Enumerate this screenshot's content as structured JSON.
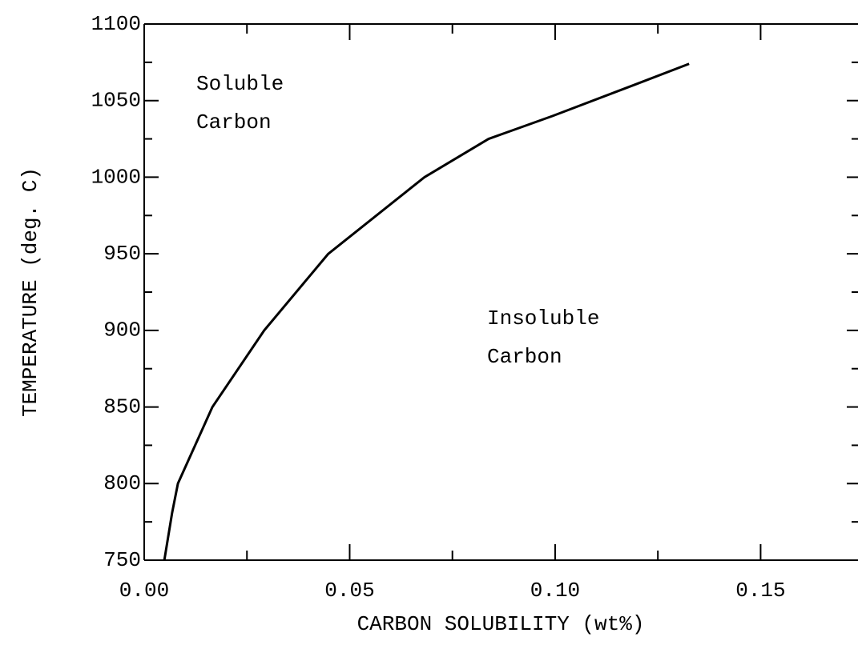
{
  "chart_data": {
    "type": "line",
    "xlabel": "CARBON SOLUBILITY (wt%)",
    "ylabel": "TEMPERATURE (deg. C)",
    "annotations": [
      [
        "Soluble",
        "Carbon"
      ],
      [
        "Insoluble",
        "Carbon"
      ]
    ],
    "x": [
      0.0049,
      0.0068,
      0.0082,
      0.0166,
      0.0292,
      0.0448,
      0.0682,
      0.0838,
      0.0994,
      0.119,
      0.1326
    ],
    "series": [
      {
        "color": "#000000",
        "values": [
          750,
          781,
          800,
          850,
          900,
          950,
          1000,
          1025,
          1040,
          1060,
          1074
        ]
      }
    ],
    "xlim": [
      0,
      0.1737
    ],
    "ylim": [
      750,
      1100
    ],
    "xticks": [
      {
        "value": 0,
        "label": "0.00"
      },
      0.05,
      {
        "value": 0.1,
        "label": "0.10"
      },
      0.15
    ],
    "xminor_ticks": [
      0.025,
      0.075,
      0.125
    ],
    "yticks": [
      750,
      800,
      850,
      900,
      950,
      1000,
      1050,
      1100
    ],
    "yminor_ticks": [
      775,
      825,
      875,
      925,
      975,
      1025,
      1075
    ],
    "grid": false
  }
}
